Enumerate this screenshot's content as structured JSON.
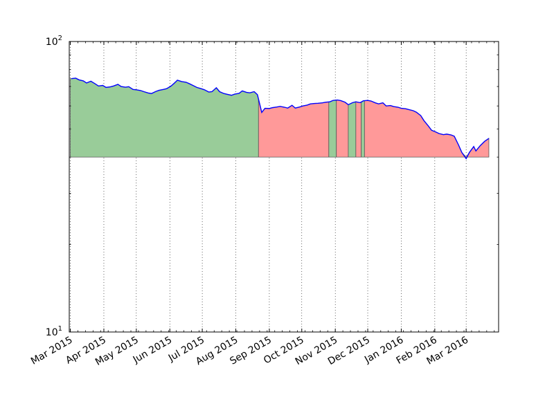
{
  "chart_data": {
    "type": "area",
    "title": "",
    "xlabel": "",
    "ylabel": "",
    "y_scale": "log",
    "ylim": [
      10,
      100
    ],
    "xlim": [
      "2015-02-28",
      "2016-03-31"
    ],
    "grid": "vertical dotted at x ticks",
    "y_ticks": [
      {
        "value": 10,
        "label": "10",
        "sup": "1"
      },
      {
        "value": 100,
        "label": "10",
        "sup": "2"
      }
    ],
    "x_ticks": [
      {
        "date": "2015-03-01",
        "label": "Mar 2015"
      },
      {
        "date": "2015-04-01",
        "label": "Apr 2015"
      },
      {
        "date": "2015-05-01",
        "label": "May 2015"
      },
      {
        "date": "2015-06-01",
        "label": "Jun 2015"
      },
      {
        "date": "2015-07-01",
        "label": "Jul 2015"
      },
      {
        "date": "2015-08-01",
        "label": "Aug 2015"
      },
      {
        "date": "2015-09-01",
        "label": "Sep 2015"
      },
      {
        "date": "2015-10-01",
        "label": "Oct 2015"
      },
      {
        "date": "2015-11-01",
        "label": "Nov 2015"
      },
      {
        "date": "2015-12-01",
        "label": "Dec 2015"
      },
      {
        "date": "2016-01-01",
        "label": "Jan 2016"
      },
      {
        "date": "2016-02-01",
        "label": "Feb 2016"
      },
      {
        "date": "2016-03-01",
        "label": "Mar 2016"
      }
    ],
    "fill_baseline": 40,
    "colors": {
      "line": "#0000ff",
      "up_fill": "#99cc99",
      "down_fill": "#ff9999",
      "edge": "#555555"
    },
    "series": [
      {
        "values": [
          [
            "2015-03-02",
            74.5
          ],
          [
            "2015-03-06",
            74.8
          ],
          [
            "2015-03-09",
            73.8
          ],
          [
            "2015-03-13",
            73.2
          ],
          [
            "2015-03-16",
            72.0
          ],
          [
            "2015-03-20",
            73.0
          ],
          [
            "2015-03-24",
            71.5
          ],
          [
            "2015-03-27",
            70.3
          ],
          [
            "2015-03-31",
            70.6
          ],
          [
            "2015-04-03",
            69.5
          ],
          [
            "2015-04-07",
            69.8
          ],
          [
            "2015-04-10",
            70.3
          ],
          [
            "2015-04-14",
            71.2
          ],
          [
            "2015-04-17",
            70.0
          ],
          [
            "2015-04-21",
            69.6
          ],
          [
            "2015-04-24",
            69.9
          ],
          [
            "2015-04-28",
            68.4
          ],
          [
            "2015-05-01",
            68.2
          ],
          [
            "2015-05-05",
            67.8
          ],
          [
            "2015-05-08",
            67.2
          ],
          [
            "2015-05-12",
            66.5
          ],
          [
            "2015-05-15",
            66.2
          ],
          [
            "2015-05-19",
            67.3
          ],
          [
            "2015-05-22",
            67.9
          ],
          [
            "2015-05-26",
            68.4
          ],
          [
            "2015-05-29",
            68.8
          ],
          [
            "2015-06-02",
            70.2
          ],
          [
            "2015-06-05",
            71.8
          ],
          [
            "2015-06-08",
            73.6
          ],
          [
            "2015-06-12",
            72.8
          ],
          [
            "2015-06-16",
            72.4
          ],
          [
            "2015-06-19",
            71.6
          ],
          [
            "2015-06-23",
            70.4
          ],
          [
            "2015-06-26",
            69.5
          ],
          [
            "2015-06-30",
            68.8
          ],
          [
            "2015-07-03",
            68.2
          ],
          [
            "2015-07-07",
            67.0
          ],
          [
            "2015-07-10",
            67.2
          ],
          [
            "2015-07-14",
            69.3
          ],
          [
            "2015-07-17",
            67.2
          ],
          [
            "2015-07-21",
            66.2
          ],
          [
            "2015-07-24",
            65.8
          ],
          [
            "2015-07-28",
            65.3
          ],
          [
            "2015-07-31",
            65.9
          ],
          [
            "2015-08-04",
            66.3
          ],
          [
            "2015-08-07",
            67.6
          ],
          [
            "2015-08-11",
            66.8
          ],
          [
            "2015-08-14",
            66.6
          ],
          [
            "2015-08-18",
            67.2
          ],
          [
            "2015-08-21",
            65.6
          ],
          [
            "2015-08-25",
            57.0
          ],
          [
            "2015-08-28",
            58.9
          ],
          [
            "2015-09-01",
            58.8
          ],
          [
            "2015-09-04",
            59.2
          ],
          [
            "2015-09-08",
            59.5
          ],
          [
            "2015-09-11",
            59.8
          ],
          [
            "2015-09-15",
            59.4
          ],
          [
            "2015-09-18",
            59.0
          ],
          [
            "2015-09-22",
            60.3
          ],
          [
            "2015-09-25",
            59.0
          ],
          [
            "2015-09-29",
            59.5
          ],
          [
            "2015-10-02",
            60.0
          ],
          [
            "2015-10-06",
            60.4
          ],
          [
            "2015-10-09",
            61.0
          ],
          [
            "2015-10-13",
            61.2
          ],
          [
            "2015-10-16",
            61.3
          ],
          [
            "2015-10-20",
            61.5
          ],
          [
            "2015-10-23",
            61.8
          ],
          [
            "2015-10-27",
            62.0
          ],
          [
            "2015-10-30",
            62.7
          ],
          [
            "2015-11-03",
            62.9
          ],
          [
            "2015-11-06",
            62.6
          ],
          [
            "2015-11-10",
            61.8
          ],
          [
            "2015-11-13",
            60.6
          ],
          [
            "2015-11-17",
            61.6
          ],
          [
            "2015-11-20",
            62.0
          ],
          [
            "2015-11-24",
            61.6
          ],
          [
            "2015-11-27",
            62.5
          ],
          [
            "2015-12-01",
            62.7
          ],
          [
            "2015-12-04",
            62.4
          ],
          [
            "2015-12-08",
            61.5
          ],
          [
            "2015-12-11",
            61.0
          ],
          [
            "2015-12-15",
            61.5
          ],
          [
            "2015-12-18",
            60.0
          ],
          [
            "2015-12-22",
            60.2
          ],
          [
            "2015-12-25",
            59.7
          ],
          [
            "2015-12-29",
            59.4
          ],
          [
            "2016-01-01",
            58.9
          ],
          [
            "2016-01-05",
            58.7
          ],
          [
            "2016-01-08",
            58.3
          ],
          [
            "2016-01-12",
            57.8
          ],
          [
            "2016-01-15",
            57.1
          ],
          [
            "2016-01-19",
            55.6
          ],
          [
            "2016-01-22",
            53.4
          ],
          [
            "2016-01-26",
            51.2
          ],
          [
            "2016-01-29",
            49.5
          ],
          [
            "2016-02-02",
            48.8
          ],
          [
            "2016-02-05",
            48.2
          ],
          [
            "2016-02-09",
            47.8
          ],
          [
            "2016-02-12",
            48.0
          ],
          [
            "2016-02-16",
            47.7
          ],
          [
            "2016-02-19",
            47.2
          ],
          [
            "2016-02-23",
            44.0
          ],
          [
            "2016-02-26",
            41.5
          ],
          [
            "2016-03-01",
            39.5
          ],
          [
            "2016-03-04",
            41.5
          ],
          [
            "2016-03-08",
            43.5
          ],
          [
            "2016-03-10",
            42.0
          ],
          [
            "2016-03-14",
            43.8
          ],
          [
            "2016-03-18",
            45.3
          ],
          [
            "2016-03-22",
            46.4
          ]
        ]
      }
    ],
    "fill_regions": [
      {
        "start": "2015-03-01",
        "end": "2015-08-22",
        "trend": "up"
      },
      {
        "start": "2015-08-22",
        "end": "2015-10-26",
        "trend": "down"
      },
      {
        "start": "2015-10-26",
        "end": "2015-11-02",
        "trend": "up"
      },
      {
        "start": "2015-11-02",
        "end": "2015-11-13",
        "trend": "down"
      },
      {
        "start": "2015-11-13",
        "end": "2015-11-20",
        "trend": "up"
      },
      {
        "start": "2015-11-20",
        "end": "2015-11-25",
        "trend": "down"
      },
      {
        "start": "2015-11-25",
        "end": "2015-11-28",
        "trend": "up"
      },
      {
        "start": "2015-11-28",
        "end": "2016-03-22",
        "trend": "down"
      }
    ]
  }
}
